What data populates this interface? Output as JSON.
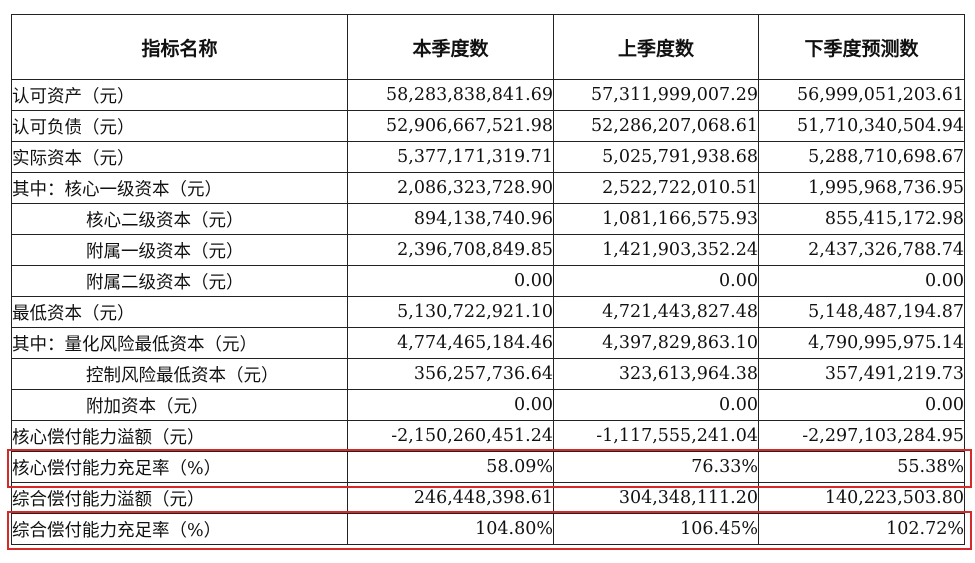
{
  "header": {
    "name": "指标名称",
    "current": "本季度数",
    "previous": "上季度数",
    "forecast": "下季度预测数"
  },
  "rows": [
    {
      "name": "认可资产（元）",
      "indent": false,
      "current": "58,283,838,841.69",
      "previous": "57,311,999,007.29",
      "forecast": "56,999,051,203.61"
    },
    {
      "name": "认可负债（元）",
      "indent": false,
      "current": "52,906,667,521.98",
      "previous": "52,286,207,068.61",
      "forecast": "51,710,340,504.94"
    },
    {
      "name": "实际资本（元）",
      "indent": false,
      "current": "5,377,171,319.71",
      "previous": "5,025,791,938.68",
      "forecast": "5,288,710,698.67"
    },
    {
      "name": "其中：核心一级资本（元）",
      "indent": false,
      "current": "2,086,323,728.90",
      "previous": "2,522,722,010.51",
      "forecast": "1,995,968,736.95"
    },
    {
      "name": "核心二级资本（元）",
      "indent": true,
      "current": "894,138,740.96",
      "previous": "1,081,166,575.93",
      "forecast": "855,415,172.98"
    },
    {
      "name": "附属一级资本（元）",
      "indent": true,
      "current": "2,396,708,849.85",
      "previous": "1,421,903,352.24",
      "forecast": "2,437,326,788.74"
    },
    {
      "name": "附属二级资本（元）",
      "indent": true,
      "current": "0.00",
      "previous": "0.00",
      "forecast": "0.00"
    },
    {
      "name": "最低资本（元）",
      "indent": false,
      "current": "5,130,722,921.10",
      "previous": "4,721,443,827.48",
      "forecast": "5,148,487,194.87"
    },
    {
      "name": "其中：量化风险最低资本（元）",
      "indent": false,
      "current": "4,774,465,184.46",
      "previous": "4,397,829,863.10",
      "forecast": "4,790,995,975.14"
    },
    {
      "name": "控制风险最低资本（元）",
      "indent": true,
      "current": "356,257,736.64",
      "previous": "323,613,964.38",
      "forecast": "357,491,219.73"
    },
    {
      "name": "附加资本（元）",
      "indent": true,
      "current": "0.00",
      "previous": "0.00",
      "forecast": "0.00"
    },
    {
      "name": "核心偿付能力溢额（元）",
      "indent": false,
      "current": "-2,150,260,451.24",
      "previous": "-1,117,555,241.04",
      "forecast": "-2,297,103,284.95"
    },
    {
      "name": "核心偿付能力充足率（%）",
      "indent": false,
      "current": "58.09%",
      "previous": "76.33%",
      "forecast": "55.38%",
      "highlight": true
    },
    {
      "name": "综合偿付能力溢额（元）",
      "indent": false,
      "current": "246,448,398.61",
      "previous": "304,348,111.20",
      "forecast": "140,223,503.80"
    },
    {
      "name": "综合偿付能力充足率（%）",
      "indent": false,
      "current": "104.80%",
      "previous": "106.45%",
      "forecast": "102.72%",
      "highlight": true
    }
  ],
  "colors": {
    "highlight_border": "#d42a2a",
    "grid": "#222222"
  }
}
